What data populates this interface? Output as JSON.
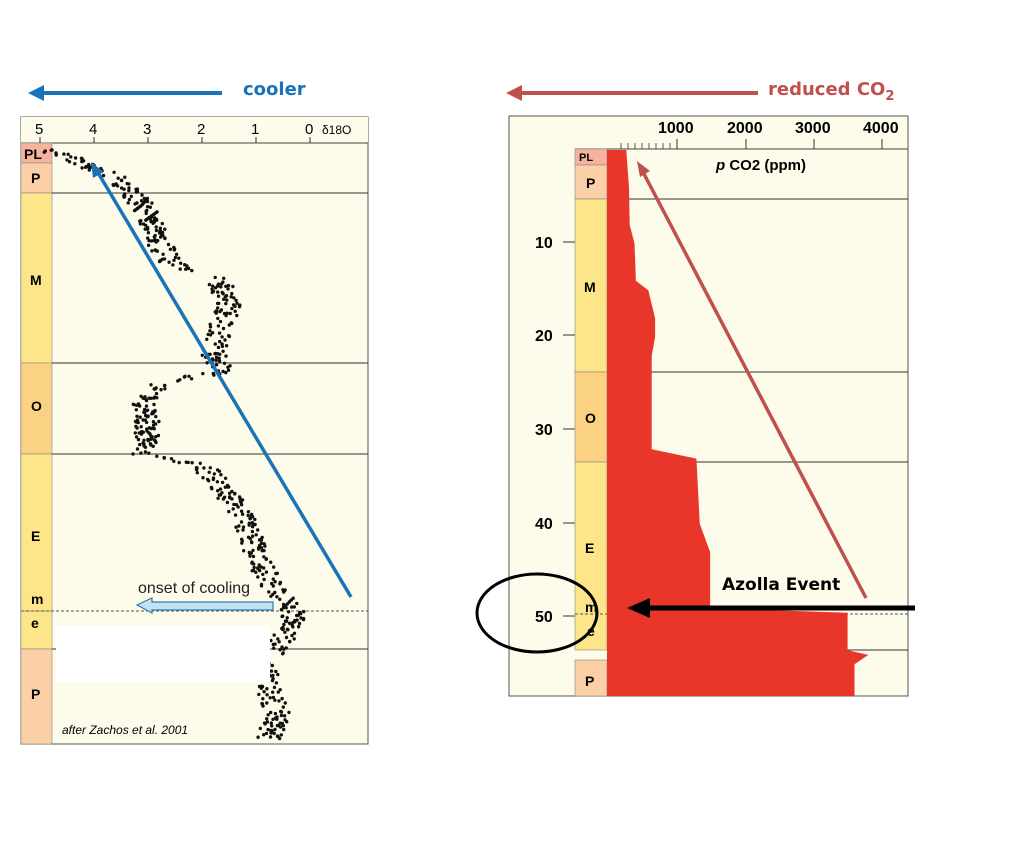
{
  "headers": {
    "left": {
      "label": "cooler",
      "color": "#1a73b8"
    },
    "right": {
      "label": "reduced CO",
      "subscript": "2",
      "color": "#c0504d"
    }
  },
  "colors": {
    "panel_bg": "#fdfbea",
    "period_fill": "#fde58a",
    "paleocene_fill": "#fbd0a6",
    "o_fill": "#fbd282",
    "pl_fill": "#f6b49e",
    "co2_fill": "#e8362a",
    "blue_arrow": "#1a73b8",
    "red_arrow": "#c0504d",
    "cooling_arrow_fill": "#bfe3f5"
  },
  "left_panel": {
    "axis_label": "δ18O",
    "x_ticks": [
      "5",
      "4",
      "3",
      "2",
      "1",
      "0"
    ],
    "periods": [
      "PL",
      "P",
      "M",
      "O",
      "E",
      "m",
      "e",
      "P"
    ],
    "annotation": "onset of cooling",
    "credit": "after Zachos et al. 2001"
  },
  "right_panel": {
    "x_ticks": [
      "1000",
      "2000",
      "3000",
      "4000"
    ],
    "x_label_italic": "p",
    "x_label": " CO2 (ppm)",
    "y_ticks": [
      "10",
      "20",
      "30",
      "40",
      "50"
    ],
    "periods": [
      "PL",
      "P",
      "M",
      "O",
      "E",
      "m",
      "e",
      "P"
    ],
    "annotation": "Azolla Event"
  },
  "chart_data": [
    {
      "type": "scatter",
      "title": "",
      "xlabel": "δ18O",
      "ylabel": "",
      "x_reversed": true,
      "xlim": [
        5,
        0
      ],
      "ylim_ma": [
        0,
        65
      ],
      "grid": false,
      "trend": [
        {
          "age_ma": 0,
          "d18O": 4.8
        },
        {
          "age_ma": 3,
          "d18O": 3.6
        },
        {
          "age_ma": 6,
          "d18O": 3.1
        },
        {
          "age_ma": 10,
          "d18O": 2.8
        },
        {
          "age_ma": 12,
          "d18O": 2.6
        },
        {
          "age_ma": 14,
          "d18O": 1.7
        },
        {
          "age_ma": 17,
          "d18O": 1.5
        },
        {
          "age_ma": 20,
          "d18O": 1.7
        },
        {
          "age_ma": 22,
          "d18O": 1.8
        },
        {
          "age_ma": 24,
          "d18O": 1.6
        },
        {
          "age_ma": 25,
          "d18O": 2.7
        },
        {
          "age_ma": 27,
          "d18O": 3.1
        },
        {
          "age_ma": 30,
          "d18O": 3.0
        },
        {
          "age_ma": 33,
          "d18O": 3.1
        },
        {
          "age_ma": 34,
          "d18O": 2.0
        },
        {
          "age_ma": 36,
          "d18O": 1.7
        },
        {
          "age_ma": 40,
          "d18O": 1.2
        },
        {
          "age_ma": 44,
          "d18O": 1.0
        },
        {
          "age_ma": 47,
          "d18O": 0.7
        },
        {
          "age_ma": 50,
          "d18O": 0.3
        },
        {
          "age_ma": 52,
          "d18O": 0.4
        },
        {
          "age_ma": 53,
          "d18O": 0.5
        },
        {
          "age_ma": 55,
          "d18O": 0.8
        },
        {
          "age_ma": 58,
          "d18O": 0.8
        },
        {
          "age_ma": 61,
          "d18O": 0.6
        },
        {
          "age_ma": 64,
          "d18O": 0.8
        }
      ]
    },
    {
      "type": "area",
      "title": "",
      "xlabel": "p CO2 (ppm)",
      "ylabel": "",
      "xlim": [
        0,
        4400
      ],
      "ylim_ma": [
        0,
        56
      ],
      "grid": false,
      "series": [
        {
          "points": [
            {
              "age_ma": 0,
              "co2": 280
            },
            {
              "age_ma": 2,
              "co2": 300
            },
            {
              "age_ma": 4,
              "co2": 320
            },
            {
              "age_ma": 8,
              "co2": 330
            },
            {
              "age_ma": 10,
              "co2": 400
            },
            {
              "age_ma": 14,
              "co2": 420
            },
            {
              "age_ma": 15,
              "co2": 600
            },
            {
              "age_ma": 18,
              "co2": 700
            },
            {
              "age_ma": 20,
              "co2": 700
            },
            {
              "age_ma": 22,
              "co2": 650
            },
            {
              "age_ma": 24,
              "co2": 650
            },
            {
              "age_ma": 32,
              "co2": 650
            },
            {
              "age_ma": 33,
              "co2": 1300
            },
            {
              "age_ma": 40,
              "co2": 1350
            },
            {
              "age_ma": 43,
              "co2": 1500
            },
            {
              "age_ma": 49,
              "co2": 1500
            },
            {
              "age_ma": 49.5,
              "co2": 3500
            },
            {
              "age_ma": 53.5,
              "co2": 3500
            },
            {
              "age_ma": 54,
              "co2": 3800
            },
            {
              "age_ma": 55,
              "co2": 3600
            },
            {
              "age_ma": 56,
              "co2": 3600
            }
          ]
        }
      ]
    }
  ]
}
